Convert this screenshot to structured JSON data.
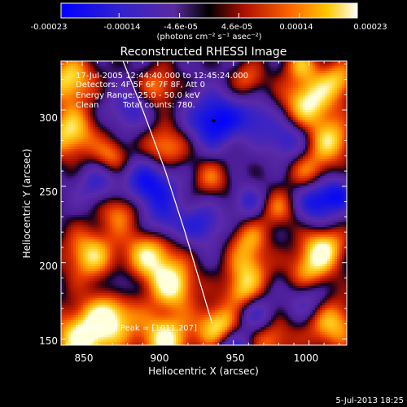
{
  "chart_data": {
    "type": "heatmap",
    "title": "Reconstructed RHESSI Image",
    "xlabel": "Heliocentric X (arcsec)",
    "ylabel": "Heliocentric Y (arcsec)",
    "xlim": [
      836,
      1025
    ],
    "ylim": [
      146,
      332
    ],
    "x_ticks": [
      850,
      900,
      950,
      1000
    ],
    "y_ticks": [
      150,
      200,
      250,
      300
    ],
    "colorbar": {
      "ticks": [
        "-0.00023",
        "-0.00014",
        "-4.6e-05",
        "4.6e-05",
        "0.00014",
        "0.00023"
      ],
      "tick_values": [
        -0.00023,
        -0.00014,
        -4.6e-05,
        4.6e-05,
        0.00014,
        0.00023
      ],
      "range": [
        -0.00023,
        0.00023
      ],
      "units": "(photons cm⁻² s⁻¹ asec⁻²)",
      "colors": [
        "#0000ff",
        "#5a2aa0",
        "#000000",
        "#cc2200",
        "#ff8800",
        "#ffffff"
      ]
    },
    "annotations": {
      "time": "17-Jul-2005 12:44:40.000 to 12:45:24.000",
      "detectors": "Detectors: 4F 5F 6F 7F 8F, Att 0",
      "energy": "Energy Range: 25.0 - 50.0 keV",
      "clean_label": "Clean",
      "counts": "Total counts: 780.",
      "peak": "Position of Peak = [1011,207]"
    },
    "peak_position": [
      1011,
      207
    ],
    "cold_spot_marker": [
      937,
      293
    ],
    "limb_curve": [
      [
        877,
        332
      ],
      [
        890,
        300
      ],
      [
        905,
        260
      ],
      [
        918,
        220
      ],
      [
        930,
        180
      ],
      [
        936,
        160
      ]
    ],
    "blobs": [
      [
        850,
        150,
        1.0,
        14
      ],
      [
        870,
        165,
        0.9,
        12
      ],
      [
        905,
        150,
        1.0,
        12
      ],
      [
        940,
        158,
        0.95,
        10
      ],
      [
        975,
        150,
        0.6,
        10
      ],
      [
        1015,
        160,
        0.8,
        12
      ],
      [
        855,
        205,
        0.85,
        12
      ],
      [
        895,
        205,
        0.9,
        12
      ],
      [
        910,
        185,
        0.95,
        11
      ],
      [
        960,
        195,
        0.7,
        10
      ],
      [
        1000,
        195,
        0.65,
        10
      ],
      [
        1010,
        210,
        0.9,
        10
      ],
      [
        960,
        215,
        0.6,
        9
      ],
      [
        875,
        235,
        0.7,
        10
      ],
      [
        980,
        235,
        0.55,
        9
      ],
      [
        935,
        255,
        0.5,
        9
      ],
      [
        1000,
        260,
        0.6,
        10
      ],
      [
        905,
        275,
        0.75,
        10
      ],
      [
        1000,
        305,
        1.0,
        12
      ],
      [
        1015,
        280,
        0.8,
        10
      ],
      [
        1020,
        320,
        0.7,
        9
      ],
      [
        842,
        320,
        0.9,
        11
      ],
      [
        842,
        285,
        0.9,
        12
      ],
      [
        900,
        315,
        0.6,
        9
      ],
      [
        960,
        320,
        0.5,
        8
      ],
      [
        995,
        330,
        0.6,
        8
      ],
      [
        870,
        270,
        0.6,
        8
      ],
      [
        955,
        180,
        0.6,
        8
      ],
      [
        938,
        293,
        -1.0,
        12
      ],
      [
        895,
        250,
        -0.9,
        13
      ],
      [
        1005,
        240,
        -0.85,
        10
      ],
      [
        860,
        250,
        -0.5,
        10
      ],
      [
        930,
        225,
        -0.6,
        10
      ],
      [
        905,
        225,
        -0.5,
        9
      ],
      [
        985,
        280,
        -0.6,
        10
      ],
      [
        880,
        300,
        -0.5,
        10
      ],
      [
        1020,
        245,
        -0.6,
        8
      ],
      [
        965,
        295,
        -0.5,
        9
      ],
      [
        965,
        165,
        -0.5,
        9
      ],
      [
        960,
        240,
        -0.5,
        8
      ],
      [
        1000,
        175,
        -0.5,
        9
      ],
      [
        875,
        185,
        -0.4,
        8
      ],
      [
        950,
        145,
        -0.7,
        8
      ]
    ]
  },
  "footer": {
    "timestamp": "5-Jul-2013 18:25"
  }
}
